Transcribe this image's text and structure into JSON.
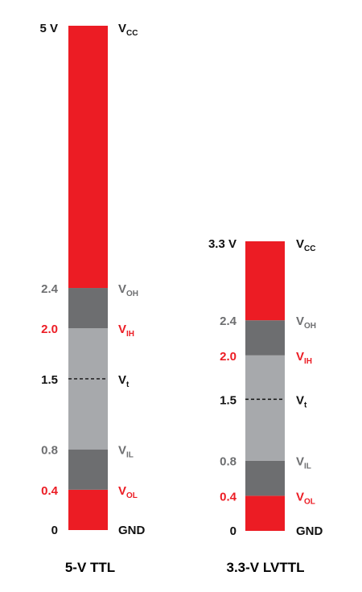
{
  "colors": {
    "red": "#ec1c24",
    "dark_gray": "#6d6e70",
    "light_gray": "#a7a9ac",
    "black": "#111111"
  },
  "columns": [
    {
      "caption": "5-V TTL",
      "vcc": 5.0,
      "bands": [
        {
          "from": 0.0,
          "to": 0.4,
          "color": "red"
        },
        {
          "from": 0.4,
          "to": 0.8,
          "color": "dark_gray"
        },
        {
          "from": 0.8,
          "to": 2.0,
          "color": "light_gray"
        },
        {
          "from": 2.0,
          "to": 2.4,
          "color": "dark_gray"
        },
        {
          "from": 2.4,
          "to": 5.0,
          "color": "red"
        }
      ],
      "threshold": 1.5,
      "levels": [
        {
          "id": "vcc",
          "value": 5.0,
          "value_text": "5 V",
          "main": "V",
          "sub": "CC",
          "value_color": "black",
          "name_color": "black"
        },
        {
          "id": "voh",
          "value": 2.4,
          "value_text": "2.4",
          "main": "V",
          "sub": "OH",
          "value_color": "dark_gray",
          "name_color": "dark_gray"
        },
        {
          "id": "vih",
          "value": 2.0,
          "value_text": "2.0",
          "main": "V",
          "sub": "IH",
          "value_color": "red",
          "name_color": "red"
        },
        {
          "id": "vt",
          "value": 1.5,
          "value_text": "1.5",
          "main": "V",
          "sub": "t",
          "value_color": "black",
          "name_color": "black"
        },
        {
          "id": "vil",
          "value": 0.8,
          "value_text": "0.8",
          "main": "V",
          "sub": "IL",
          "value_color": "dark_gray",
          "name_color": "dark_gray"
        },
        {
          "id": "vol",
          "value": 0.4,
          "value_text": "0.4",
          "main": "V",
          "sub": "OL",
          "value_color": "red",
          "name_color": "red"
        },
        {
          "id": "gnd",
          "value": 0.0,
          "value_text": "0",
          "main": "GND",
          "sub": "",
          "value_color": "black",
          "name_color": "black"
        }
      ]
    },
    {
      "caption": "3.3-V LVTTL",
      "vcc": 3.3,
      "bands": [
        {
          "from": 0.0,
          "to": 0.4,
          "color": "red"
        },
        {
          "from": 0.4,
          "to": 0.8,
          "color": "dark_gray"
        },
        {
          "from": 0.8,
          "to": 2.0,
          "color": "light_gray"
        },
        {
          "from": 2.0,
          "to": 2.4,
          "color": "dark_gray"
        },
        {
          "from": 2.4,
          "to": 3.3,
          "color": "red"
        }
      ],
      "threshold": 1.5,
      "levels": [
        {
          "id": "vcc",
          "value": 3.3,
          "value_text": "3.3 V",
          "main": "V",
          "sub": "CC",
          "value_color": "black",
          "name_color": "black"
        },
        {
          "id": "voh",
          "value": 2.4,
          "value_text": "2.4",
          "main": "V",
          "sub": "OH",
          "value_color": "dark_gray",
          "name_color": "dark_gray"
        },
        {
          "id": "vih",
          "value": 2.0,
          "value_text": "2.0",
          "main": "V",
          "sub": "IH",
          "value_color": "red",
          "name_color": "red"
        },
        {
          "id": "vt",
          "value": 1.5,
          "value_text": "1.5",
          "main": "V",
          "sub": "t",
          "value_color": "black",
          "name_color": "black"
        },
        {
          "id": "vil",
          "value": 0.8,
          "value_text": "0.8",
          "main": "V",
          "sub": "IL",
          "value_color": "dark_gray",
          "name_color": "dark_gray"
        },
        {
          "id": "vol",
          "value": 0.4,
          "value_text": "0.4",
          "main": "V",
          "sub": "OL",
          "value_color": "red",
          "name_color": "red"
        },
        {
          "id": "gnd",
          "value": 0.0,
          "value_text": "0",
          "main": "GND",
          "sub": "",
          "value_color": "black",
          "name_color": "black"
        }
      ]
    }
  ]
}
